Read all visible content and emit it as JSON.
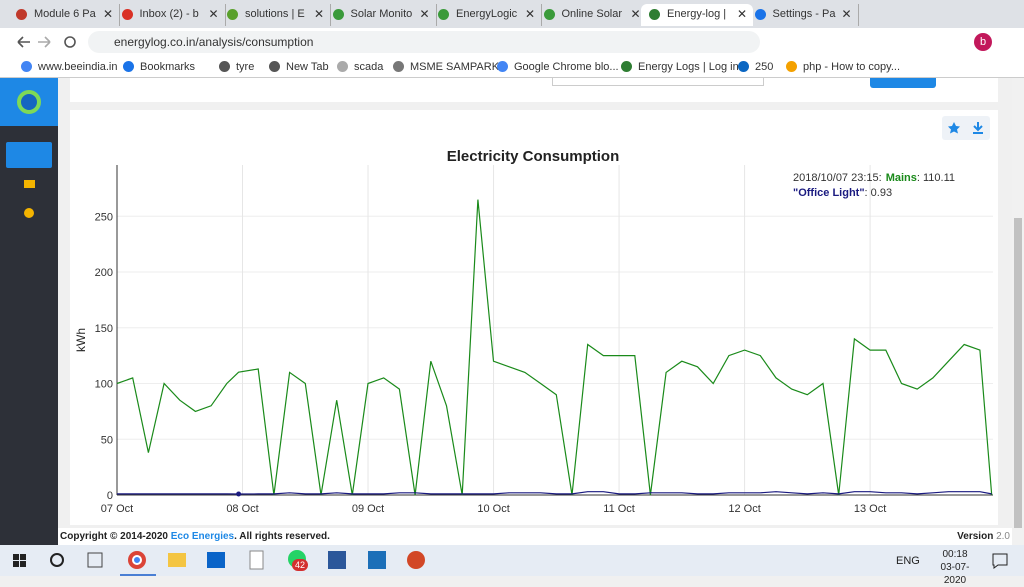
{
  "browser": {
    "tabs": [
      "Module 6 Pa",
      "Inbox (2) - b",
      "solutions | E",
      "Solar Monito",
      "EnergyLogic",
      "Online Solar",
      "Energy-log |",
      "Settings - Pa"
    ],
    "url": "energylog.co.in/analysis/consumption",
    "bookmarks": [
      "www.beeindia.in",
      "Bookmarks",
      "tyre",
      "New Tab",
      "scada",
      "MSME SAMPARK",
      "Google Chrome blo...",
      "Energy Logs | Log in",
      "250",
      "php - How to copy..."
    ],
    "profile": "b"
  },
  "footer": {
    "copyright": "Copyright © 2014-2020",
    "company": "Eco Energies",
    "rights": ". All rights reserved.",
    "version_label": "Version",
    "version": "2.0"
  },
  "taskbar": {
    "badge": "42",
    "language": "ENG",
    "time": "00:18",
    "date": "03-07-2020"
  },
  "chart_data": {
    "type": "line",
    "title": "Electricity Consumption",
    "y_label": "kWh",
    "x": [
      "2018/10/07 00:00",
      "2018/10/07 03:00",
      "2018/10/07 06:00",
      "2018/10/07 09:00",
      "2018/10/07 12:00",
      "2018/10/07 15:00",
      "2018/10/07 18:00",
      "2018/10/07 21:00",
      "2018/10/07 23:15",
      "2018/10/08 03:00",
      "2018/10/08 06:00",
      "2018/10/08 09:00",
      "2018/10/08 12:00",
      "2018/10/08 15:00",
      "2018/10/08 18:00",
      "2018/10/08 21:00",
      "2018/10/09 00:00",
      "2018/10/09 03:00",
      "2018/10/09 06:00",
      "2018/10/09 09:00",
      "2018/10/09 12:00",
      "2018/10/09 15:00",
      "2018/10/09 18:00",
      "2018/10/09 21:00",
      "2018/10/10 00:00",
      "2018/10/10 03:00",
      "2018/10/10 06:00",
      "2018/10/10 09:00",
      "2018/10/10 12:00",
      "2018/10/10 15:00",
      "2018/10/10 18:00",
      "2018/10/10 21:00",
      "2018/10/11 00:00",
      "2018/10/11 03:00",
      "2018/10/11 06:00",
      "2018/10/11 09:00",
      "2018/10/11 12:00",
      "2018/10/11 15:00",
      "2018/10/11 18:00",
      "2018/10/11 21:00",
      "2018/10/12 00:00",
      "2018/10/12 03:00",
      "2018/10/12 06:00",
      "2018/10/12 09:00",
      "2018/10/12 12:00",
      "2018/10/12 15:00",
      "2018/10/12 18:00",
      "2018/10/12 21:00",
      "2018/10/13 00:00",
      "2018/10/13 03:00",
      "2018/10/13 06:00",
      "2018/10/13 09:00",
      "2018/10/13 12:00",
      "2018/10/13 15:00",
      "2018/10/13 18:00",
      "2018/10/13 21:00",
      "2018/10/13 23:15"
    ],
    "series": [
      {
        "name": "Mains",
        "color": "#1a8a1a",
        "values": [
          100,
          105,
          38,
          100,
          85,
          75,
          80,
          100,
          110.11,
          113,
          0,
          110,
          100,
          0,
          85,
          0,
          100,
          105,
          95,
          0,
          120,
          80,
          0,
          265,
          120,
          115,
          110,
          100,
          90,
          0,
          135,
          125,
          125,
          125,
          0,
          110,
          120,
          115,
          100,
          125,
          130,
          125,
          105,
          95,
          90,
          100,
          0,
          140,
          130,
          130,
          100,
          95,
          105,
          120,
          135,
          130,
          0
        ]
      },
      {
        "name": "\"Office Light\"",
        "color": "#1a1a80",
        "values": [
          1,
          1,
          1,
          1,
          1,
          1,
          1,
          1,
          0.93,
          1,
          1,
          2,
          1,
          1,
          2,
          1,
          1,
          1,
          2,
          2,
          1,
          1,
          1,
          1,
          1,
          2,
          2,
          2,
          1,
          1,
          3,
          3,
          1,
          1,
          2,
          2,
          2,
          1,
          1,
          2,
          2,
          2,
          3,
          2,
          1,
          2,
          1,
          3,
          3,
          2,
          2,
          1,
          2,
          3,
          3,
          3,
          1
        ]
      }
    ],
    "xlim": [
      "2018/10/07 00:00",
      "2018/10/13 23:30"
    ],
    "xticks": [
      {
        "value": "2018/10/07 00:00",
        "label": "07 Oct"
      },
      {
        "value": "2018/10/08 00:00",
        "label": "08 Oct"
      },
      {
        "value": "2018/10/09 00:00",
        "label": "09 Oct"
      },
      {
        "value": "2018/10/10 00:00",
        "label": "10 Oct"
      },
      {
        "value": "2018/10/11 00:00",
        "label": "11 Oct"
      },
      {
        "value": "2018/10/12 00:00",
        "label": "12 Oct"
      },
      {
        "value": "2018/10/13 00:00",
        "label": "13 Oct"
      }
    ],
    "ylim": [
      0,
      296
    ],
    "yticks": [
      0,
      50,
      100,
      150,
      200,
      250
    ],
    "grid": true,
    "tooltip": {
      "time": "2018/10/07 23:15:",
      "values": [
        110.11,
        0.93
      ]
    }
  }
}
